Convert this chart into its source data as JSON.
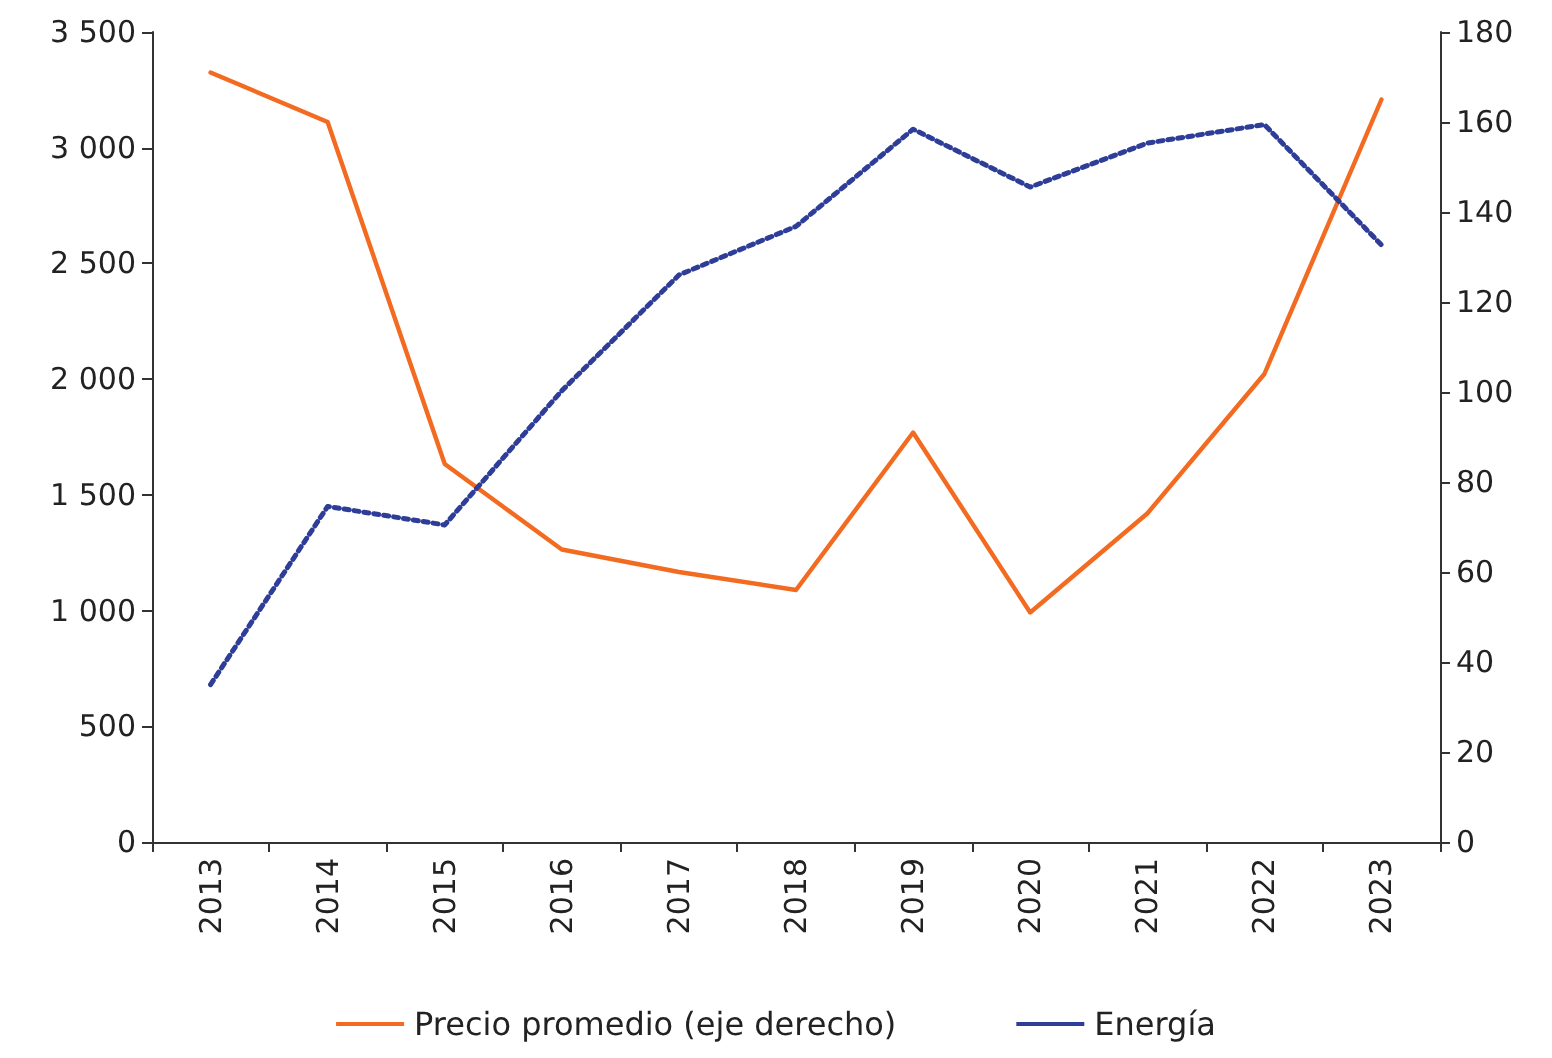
{
  "chart_data": {
    "type": "line",
    "categories": [
      "2013",
      "2014",
      "2015",
      "2016",
      "2017",
      "2018",
      "2019",
      "2020",
      "2021",
      "2022",
      "2023"
    ],
    "series": [
      {
        "name": "Precio promedio (eje derecho)",
        "color": "#f26b21",
        "axis": "y2",
        "line_style": "solid",
        "values": [
          171,
          160,
          84,
          65,
          60,
          56,
          91,
          51,
          73,
          104,
          165
        ]
      },
      {
        "name": "Energía",
        "color": "#2e3d98",
        "line_style": "dotted",
        "values": [
          680,
          1450,
          1370,
          1950,
          2450,
          2660,
          3080,
          2830,
          3020,
          3100,
          2580
        ]
      }
    ],
    "ylim": [
      0,
      3500
    ],
    "yticks": [
      0,
      500,
      {
        "value": 1000,
        "label": "1 000"
      },
      {
        "value": 1500,
        "label": "1 500"
      },
      {
        "value": 2000,
        "label": "2 000"
      },
      {
        "value": 2500,
        "label": "2 500"
      },
      {
        "value": 3000,
        "label": "3 000"
      },
      {
        "value": 3500,
        "label": "3 500"
      }
    ],
    "y2lim": [
      0,
      180
    ],
    "y2ticks": [
      0,
      20,
      40,
      60,
      80,
      100,
      120,
      140,
      160,
      180
    ],
    "grid": false,
    "legend": "bottom",
    "marker": "none"
  }
}
